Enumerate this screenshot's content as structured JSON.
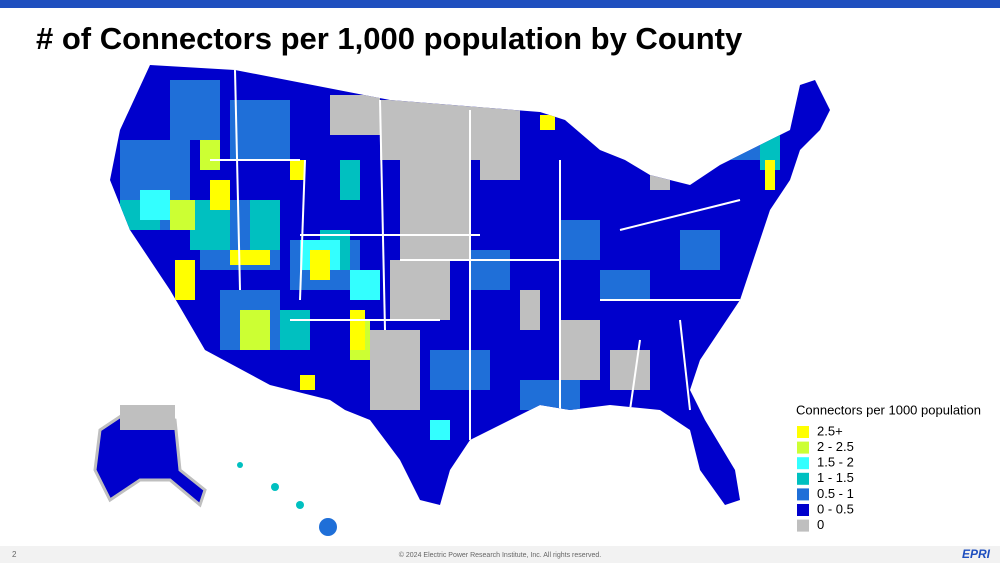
{
  "header": {
    "title": "# of Connectors per 1,000 population by County"
  },
  "legend": {
    "title": "Connectors per 1000 population",
    "items": [
      {
        "label": "2.5+",
        "color": "#ffff00"
      },
      {
        "label": "2 - 2.5",
        "color": "#ccff33"
      },
      {
        "label": "1.5 - 2",
        "color": "#33ffff"
      },
      {
        "label": "1 - 1.5",
        "color": "#00c0c0"
      },
      {
        "label": "0.5 - 1",
        "color": "#1f6fd8"
      },
      {
        "label": "0 - 0.5",
        "color": "#0000cc"
      },
      {
        "label": "0",
        "color": "#bfbfbf"
      }
    ]
  },
  "footer": {
    "page": "2",
    "copyright": "© 2024 Electric Power Research Institute, Inc. All rights reserved.",
    "logo": "EPRI"
  }
}
